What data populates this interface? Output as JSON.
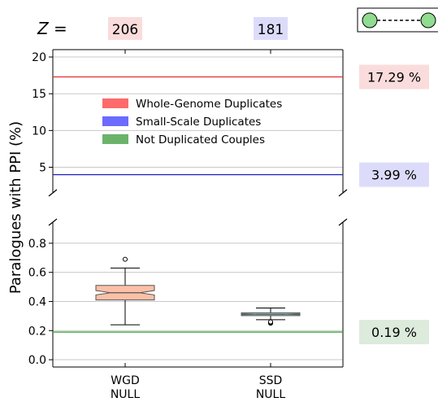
{
  "chart_data": {
    "type": "box",
    "ylabel": "Paralogues with PPI (%)",
    "z_label": "Z =",
    "categories": [
      "WGD\nNULL",
      "SSD\nNULL"
    ],
    "z_values": [
      "206",
      "181"
    ],
    "legend": {
      "placement": "upper-left-inside",
      "entries": [
        {
          "name": "Whole-Genome Duplicates",
          "color": "#ff6b6b"
        },
        {
          "name": "Small-Scale Duplicates",
          "color": "#6b6bff"
        },
        {
          "name": "Not Duplicated Couples",
          "color": "#6bb36b"
        }
      ]
    },
    "reference_lines": [
      {
        "name": "Whole-Genome Duplicates",
        "value": 17.29,
        "label": "17.29 %",
        "color": "#e03030",
        "label_bg": "#fadcdc"
      },
      {
        "name": "Small-Scale Duplicates",
        "value": 3.99,
        "label": "3.99 %",
        "color": "#2020c0",
        "label_bg": "#dcdcfa"
      },
      {
        "name": "Not Duplicated Couples",
        "value": 0.19,
        "label": "0.19 %",
        "color": "#40a040",
        "label_bg": "#dcebdc"
      }
    ],
    "upper_axis": {
      "ylim": [
        2.4,
        21.0
      ],
      "ticks": [
        5,
        10,
        15,
        20
      ]
    },
    "lower_axis": {
      "ylim": [
        -0.05,
        0.9
      ],
      "ticks": [
        0.0,
        0.2,
        0.4,
        0.6,
        0.8
      ]
    },
    "grid": true,
    "boxes": [
      {
        "category": "WGD\nNULL",
        "whisker_low": 0.24,
        "q1": 0.41,
        "median": 0.46,
        "q3": 0.51,
        "whisker_high": 0.63,
        "notch_low": 0.445,
        "notch_high": 0.475,
        "outliers": [
          0.69
        ],
        "fill": "#fcc0a8",
        "edge": "#555555"
      },
      {
        "category": "SSD\nNULL",
        "whisker_low": 0.275,
        "q1": 0.303,
        "median": 0.312,
        "q3": 0.322,
        "whisker_high": 0.355,
        "notch_low": 0.309,
        "notch_high": 0.315,
        "outliers": [
          0.25,
          0.255,
          0.26
        ],
        "fill": "#a8d8d8",
        "edge": "#555555"
      }
    ],
    "inset_icon": "node-dashed-edge-node-icon"
  }
}
